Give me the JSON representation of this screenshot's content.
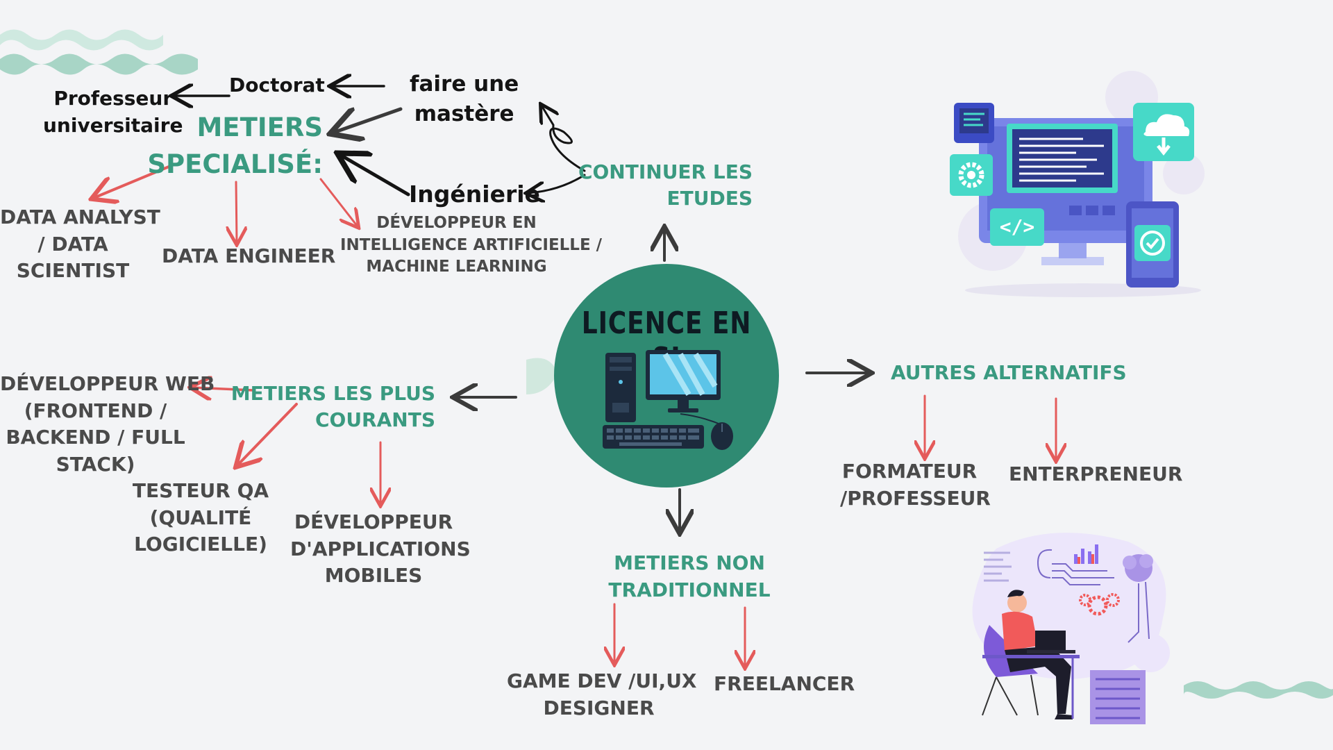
{
  "center": {
    "title": "LICENCE EN SI",
    "icon": "desktop-computer-icon"
  },
  "studies": {
    "branch": [
      "CONTINUER LES",
      "ETUDES"
    ],
    "master": [
      "faire une",
      "mastère"
    ],
    "doctorate": "Doctorat",
    "professor": [
      "Professeur",
      "universitaire"
    ],
    "engineering": "Ingénierie",
    "specialized": [
      "METIERS",
      "SPECIALISÉ:"
    ],
    "jobs": {
      "data_analyst": [
        "DATA ANALYST",
        "/ DATA",
        "SCIENTIST"
      ],
      "data_engineer": "DATA ENGINEER",
      "ai_dev": [
        "DÉVELOPPEUR EN",
        "INTELLIGENCE ARTIFICIELLE /",
        "MACHINE LEARNING"
      ]
    }
  },
  "common": {
    "branch": [
      "METIERS LES PLUS",
      "COURANTS"
    ],
    "web_dev": [
      "DÉVELOPPEUR WEB",
      "(FRONTEND /",
      "BACKEND / FULL",
      "STACK)"
    ],
    "qa": [
      "TESTEUR QA",
      "(QUALITÉ",
      "LOGICIELLE)"
    ],
    "mobile": [
      "DÉVELOPPEUR",
      "D'APPLICATIONS",
      "MOBILES"
    ]
  },
  "non_traditional": {
    "branch": [
      "METIERS NON",
      "TRADITIONNEL"
    ],
    "game_dev": [
      "GAME DEV /UI,UX",
      "DESIGNER"
    ],
    "freelancer": "FREELANCER"
  },
  "alternatives": {
    "branch": "AUTRES ALTERNATIFS",
    "trainer": [
      "FORMATEUR",
      "/PROFESSEUR"
    ],
    "entrepreneur": "ENTERPRENEUR"
  },
  "illustrations": [
    "developer-screens-illustration",
    "person-laptop-data-illustration"
  ],
  "colors": {
    "green": "#3a9a80",
    "red_arrow": "#e45b5b",
    "dark_arrow": "#3b3b3b",
    "hub": "#2f8a72",
    "wave": "#a8d5c6"
  }
}
